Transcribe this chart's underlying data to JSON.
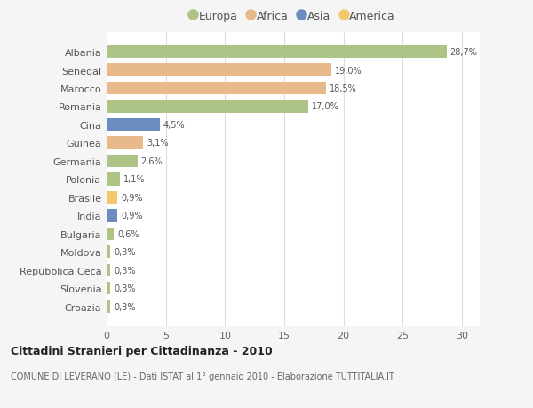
{
  "categories": [
    "Albania",
    "Senegal",
    "Marocco",
    "Romania",
    "Cina",
    "Guinea",
    "Germania",
    "Polonia",
    "Brasile",
    "India",
    "Bulgaria",
    "Moldova",
    "Repubblica Ceca",
    "Slovenia",
    "Croazia"
  ],
  "values": [
    28.7,
    19.0,
    18.5,
    17.0,
    4.5,
    3.1,
    2.6,
    1.1,
    0.9,
    0.9,
    0.6,
    0.3,
    0.3,
    0.3,
    0.3
  ],
  "labels": [
    "28,7%",
    "19,0%",
    "18,5%",
    "17,0%",
    "4,5%",
    "3,1%",
    "2,6%",
    "1,1%",
    "0,9%",
    "0,9%",
    "0,6%",
    "0,3%",
    "0,3%",
    "0,3%",
    "0,3%"
  ],
  "colors": [
    "#aec486",
    "#e8b98a",
    "#e8b98a",
    "#aec486",
    "#6b8cbf",
    "#e8b98a",
    "#aec486",
    "#aec486",
    "#f0c96e",
    "#6b8cbf",
    "#aec486",
    "#aec486",
    "#aec486",
    "#aec486",
    "#aec486"
  ],
  "legend_labels": [
    "Europa",
    "Africa",
    "Asia",
    "America"
  ],
  "legend_colors": [
    "#aec486",
    "#e8b98a",
    "#6b8cbf",
    "#f0c96e"
  ],
  "title": "Cittadini Stranieri per Cittadinanza - 2010",
  "subtitle": "COMUNE DI LEVERANO (LE) - Dati ISTAT al 1° gennaio 2010 - Elaborazione TUTTITALIA.IT",
  "xlim": [
    0,
    31.5
  ],
  "xticks": [
    0,
    5,
    10,
    15,
    20,
    25,
    30
  ],
  "bg_color": "#f5f5f5",
  "plot_bg_color": "#ffffff",
  "grid_color": "#dddddd"
}
